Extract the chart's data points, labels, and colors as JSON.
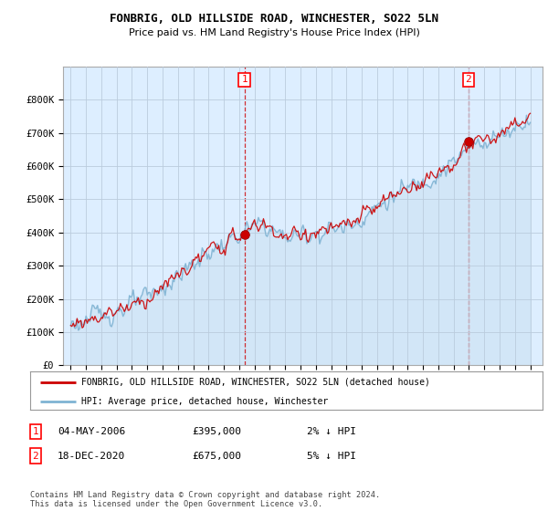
{
  "title_line1": "FONBRIG, OLD HILLSIDE ROAD, WINCHESTER, SO22 5LN",
  "title_line2": "Price paid vs. HM Land Registry's House Price Index (HPI)",
  "ylim": [
    0,
    900000
  ],
  "yticks": [
    0,
    100000,
    200000,
    300000,
    400000,
    500000,
    600000,
    700000,
    800000
  ],
  "ytick_labels": [
    "£0",
    "£100K",
    "£200K",
    "£300K",
    "£400K",
    "£500K",
    "£600K",
    "£700K",
    "£800K"
  ],
  "hpi_color": "#7fb3d3",
  "price_color": "#cc0000",
  "sale1_year": 2006.34,
  "sale1_value": 395000,
  "sale2_year": 2020.96,
  "sale2_value": 675000,
  "legend_label1": "FONBRIG, OLD HILLSIDE ROAD, WINCHESTER, SO22 5LN (detached house)",
  "legend_label2": "HPI: Average price, detached house, Winchester",
  "table_row1": [
    "1",
    "04-MAY-2006",
    "£395,000",
    "2% ↓ HPI"
  ],
  "table_row2": [
    "2",
    "18-DEC-2020",
    "£675,000",
    "5% ↓ HPI"
  ],
  "footnote": "Contains HM Land Registry data © Crown copyright and database right 2024.\nThis data is licensed under the Open Government Licence v3.0.",
  "bg_color": "#ffffff",
  "plot_bg_color": "#ddeeff",
  "grid_color": "#bbccdd"
}
